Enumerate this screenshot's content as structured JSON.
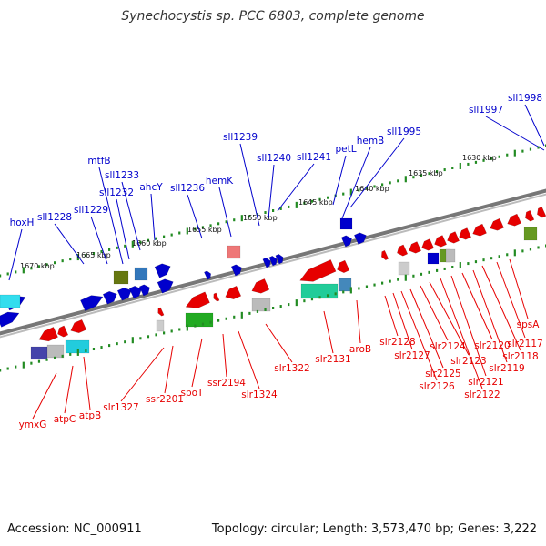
{
  "title": "Synechocystis sp. PCC 6803, complete genome",
  "footer": {
    "accession": "Accession: NC_000911",
    "topology": "Topology: circular; Length: 3,573,470 bp; Genes: 3,222"
  },
  "ticks": [
    "1630 kbp",
    "1635 kbp",
    "1640 kbp",
    "1645 kbp",
    "1650 kbp",
    "1655 kbp",
    "1660 kbp",
    "1665 kbp",
    "1670 kbp"
  ],
  "top_genes": [
    "sll1998",
    "sll1997",
    "sll1995",
    "hemB",
    "petL",
    "sll1241",
    "sll1240",
    "sll1239",
    "hemK",
    "sll1236",
    "ahcY",
    "sll1233",
    "mtfB",
    "sll1232",
    "sll1229",
    "sll1228",
    "hoxH"
  ],
  "bottom_genes": [
    "spsA",
    "slr2117",
    "slr2118",
    "slr2119",
    "slr2120",
    "slr2121",
    "slr2122",
    "slr2123",
    "slr2124",
    "slr2125",
    "slr2126",
    "slr2127",
    "slr2128",
    "aroB",
    "slr2131",
    "slr1322",
    "slr1324",
    "ssr2194",
    "spoT",
    "ssr2201",
    "slr1327",
    "atpB",
    "atpC",
    "ymxG"
  ],
  "colors": {
    "forward_gene": "#0000cc",
    "reverse_gene": "#e60000",
    "backbone": "#888888",
    "tick": "#228b22"
  }
}
